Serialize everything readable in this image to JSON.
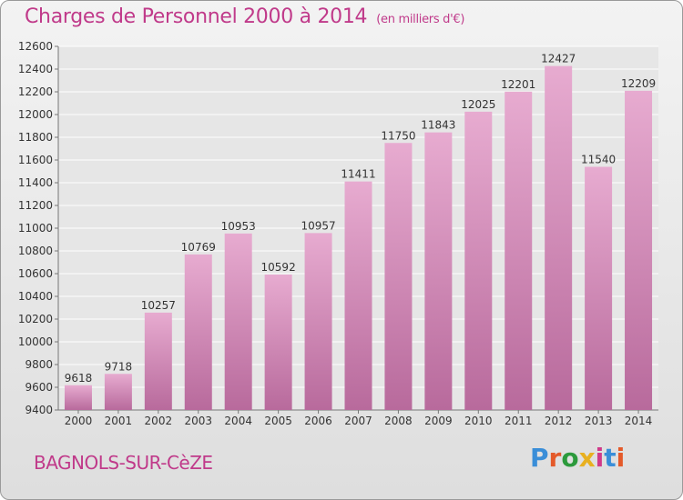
{
  "title": "Charges de Personnel 2000 à 2014",
  "subtitle": "(en milliers d'€)",
  "city": "BAGNOLS-SUR-CèZE",
  "logo_text": "Proxiti",
  "colors": {
    "title": "#c03a8a",
    "bar_top": "#e7abd0",
    "bar_bottom": "#b86a9c",
    "logo": [
      "#3a8ed8",
      "#e45a2a",
      "#2c9a3c",
      "#e8b020",
      "#d03a8a",
      "#3a8ed8",
      "#e45a2a"
    ]
  },
  "chart_data": {
    "type": "bar",
    "categories": [
      "2000",
      "2001",
      "2002",
      "2003",
      "2004",
      "2005",
      "2006",
      "2007",
      "2008",
      "2009",
      "2010",
      "2011",
      "2012",
      "2013",
      "2014"
    ],
    "values": [
      9618,
      9718,
      10257,
      10769,
      10953,
      10592,
      10957,
      11411,
      11750,
      11843,
      12025,
      12201,
      12427,
      11540,
      12209
    ],
    "ylim": [
      9400,
      12600
    ],
    "yticks": [
      9400,
      9600,
      9800,
      10000,
      10200,
      10400,
      10600,
      10800,
      11000,
      11200,
      11400,
      11600,
      11800,
      12000,
      12200,
      12400,
      12600
    ],
    "grid": true
  }
}
